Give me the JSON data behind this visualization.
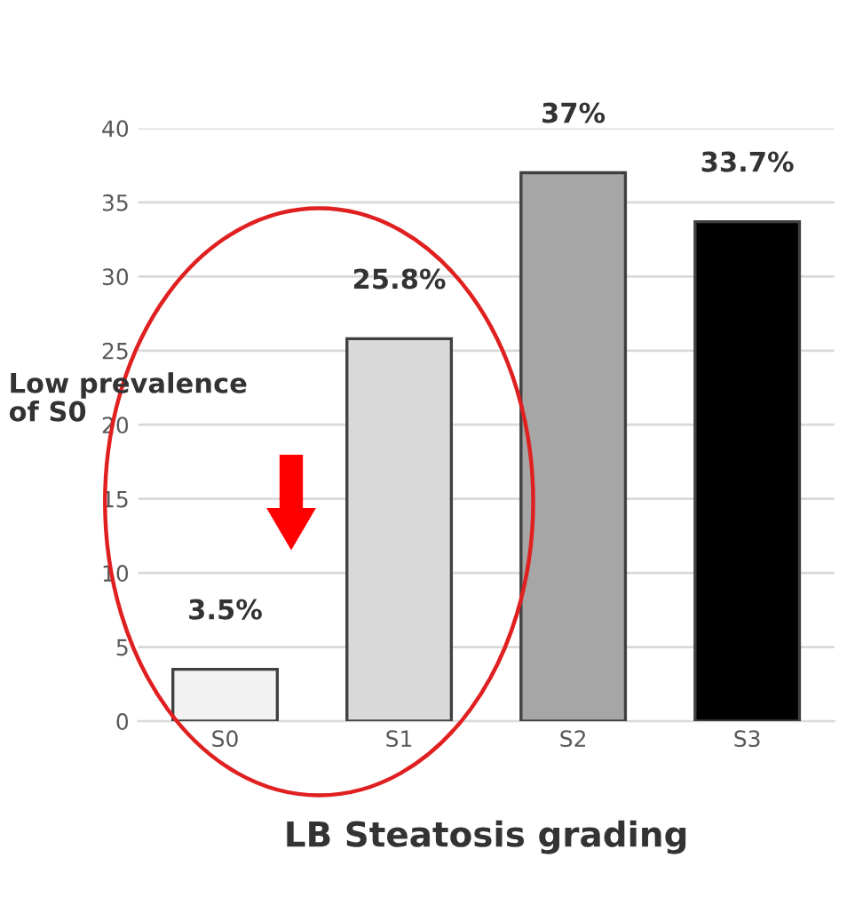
{
  "chart_data": {
    "type": "bar",
    "xlabel": "LB Steatosis grading",
    "categories": [
      "S0",
      "S1",
      "S2",
      "S3"
    ],
    "values": [
      3.5,
      25.8,
      37,
      33.7
    ],
    "colors": [
      "#f2f2f2",
      "#d9d9d9",
      "#a6a6a6",
      "#000000"
    ],
    "value_labels": [
      "3.5%",
      "25.8%",
      "37%",
      "33.7%"
    ],
    "ylim": [
      0,
      40
    ],
    "yticks": [
      0,
      5,
      10,
      15,
      20,
      25,
      30,
      35,
      40
    ],
    "grid": "y",
    "annotations": [
      "Low prevalence\nof S0"
    ]
  }
}
